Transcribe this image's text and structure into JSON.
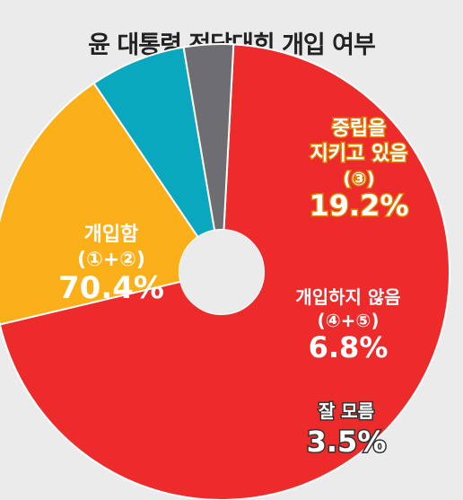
{
  "chart_data": {
    "type": "pie",
    "title": "윤 대통령 전당대회 개입 여부",
    "slices": [
      {
        "label": "개입함",
        "sub": "(①+②)",
        "value": 70.4,
        "value_text": "70.4%",
        "color": "#ee2b2b"
      },
      {
        "label": "중립을\n지키고 있음",
        "sub": "(③)",
        "value": 19.2,
        "value_text": "19.2%",
        "color": "#fbb01a"
      },
      {
        "label": "개입하지 않음",
        "sub": "(④+⑤)",
        "value": 6.8,
        "value_text": "6.8%",
        "color": "#0aa8bf"
      },
      {
        "label": "잘 모름",
        "sub": "",
        "value": 3.5,
        "value_text": "3.5%",
        "color": "#6e6e72"
      }
    ],
    "donut": true
  }
}
